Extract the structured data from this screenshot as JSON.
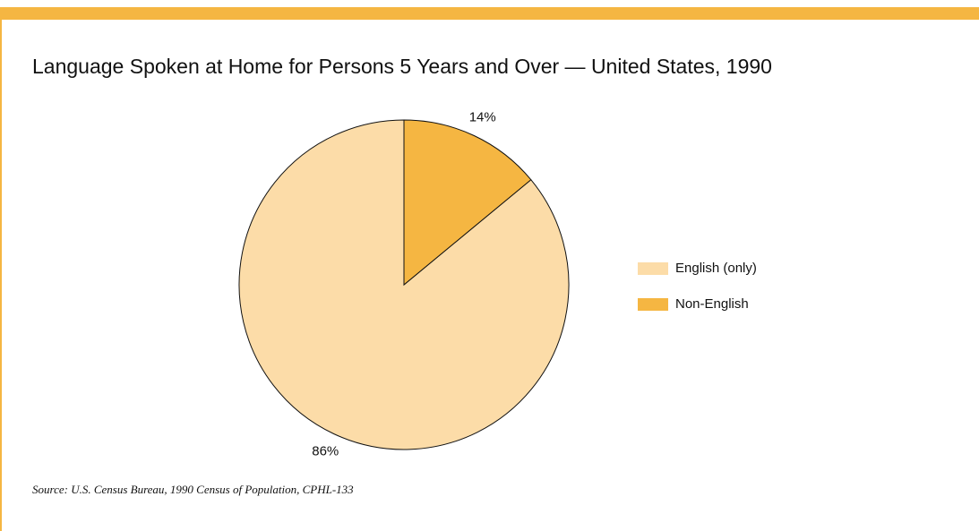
{
  "chart_data": {
    "type": "pie",
    "title": "Language Spoken at Home for Persons 5 Years and Over — United States, 1990",
    "categories": [
      "English (only)",
      "Non-English"
    ],
    "values": [
      86,
      14
    ],
    "value_labels": [
      "86%",
      "14%"
    ],
    "colors": [
      "#fcdca8",
      "#f5b642"
    ],
    "source": "Source: U.S. Census Bureau, 1990 Census of Population, CPHL-133"
  }
}
